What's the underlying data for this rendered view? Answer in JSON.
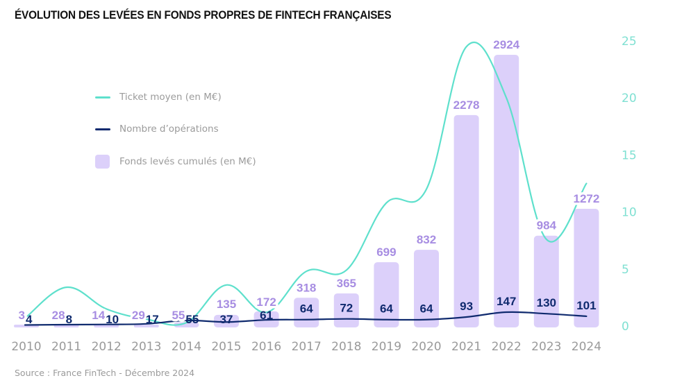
{
  "chart_data": {
    "type": "bar",
    "title": "ÉVOLUTION DES LEVÉES EN FONDS PROPRES DE FINTECH FRANÇAISES",
    "source": "Source : France FinTech - Décembre 2024",
    "categories": [
      "2010",
      "2011",
      "2012",
      "2013",
      "2014",
      "2015",
      "2016",
      "2017",
      "2018",
      "2019",
      "2020",
      "2021",
      "2022",
      "2023",
      "2024"
    ],
    "series": [
      {
        "name": "Fonds levés cumulés (en M€)",
        "type": "bar",
        "axis": "hidden",
        "color": "#dcd0fa",
        "label_color": "#a78de2",
        "values": [
          3,
          28,
          14,
          29,
          55,
          135,
          172,
          318,
          365,
          699,
          832,
          2278,
          2924,
          984,
          1272
        ]
      },
      {
        "name": "Nombre d’opérations",
        "type": "line",
        "axis": "hidden",
        "color": "#0f2a6e",
        "label_color": "#0f2a6e",
        "values": [
          4,
          8,
          10,
          17,
          55,
          37,
          61,
          64,
          72,
          64,
          64,
          93,
          147,
          130,
          101
        ]
      },
      {
        "name": "Ticket moyen (en M€)",
        "type": "line",
        "axis": "right",
        "color": "#5ee0cc",
        "values": [
          0.8,
          3.4,
          1.5,
          0.6,
          0.3,
          3.6,
          1.2,
          4.8,
          4.9,
          10.8,
          12.0,
          24.5,
          20.0,
          7.6,
          12.5
        ]
      }
    ],
    "y_right": {
      "ticks": [
        "0",
        "5",
        "10",
        "15",
        "20",
        "25"
      ],
      "range": [
        0,
        25
      ],
      "color": "#7fe0d2"
    },
    "legend": {
      "placement": "top-left",
      "items": [
        {
          "label": "Ticket moyen (en M€)",
          "kind": "line",
          "color": "#5ee0cc"
        },
        {
          "label": "Nombre d’opérations",
          "kind": "line",
          "color": "#0f2a6e"
        },
        {
          "label": "Fonds levés cumulés (en M€)",
          "kind": "swatch",
          "color": "#dcd0fa"
        }
      ]
    },
    "grid": false,
    "xlabel": "",
    "ylabel": ""
  }
}
